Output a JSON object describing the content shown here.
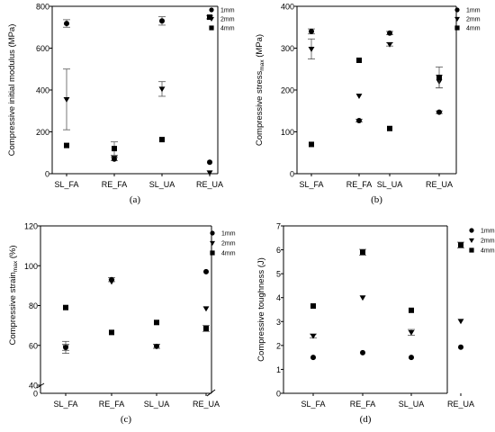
{
  "chart_data": [
    {
      "id": "a",
      "type": "scatter",
      "panel_label": "(a)",
      "ylabel": "Compressive initial modulus (MPa)",
      "ylim": [
        0,
        800
      ],
      "yticks": [
        "0",
        "200",
        "400",
        "600",
        "800"
      ],
      "categories": [
        "SL_FA",
        "RE_FA",
        "SL_UA",
        "RE_UA"
      ],
      "series": [
        {
          "name": "1mm",
          "marker": "circle",
          "values": [
            718,
            70,
            730,
            55
          ],
          "errors": [
            18,
            8,
            20,
            0
          ]
        },
        {
          "name": "2mm",
          "marker": "triangle",
          "values": [
            355,
            75,
            405,
            5
          ],
          "errors": [
            145,
            0,
            35,
            0
          ]
        },
        {
          "name": "4mm",
          "marker": "square",
          "values": [
            135,
            120,
            163,
            748
          ],
          "errors": [
            0,
            32,
            0,
            8
          ]
        }
      ]
    },
    {
      "id": "b",
      "type": "scatter",
      "panel_label": "(b)",
      "ylabel_main": "Compressive  stress",
      "ylabel_sub": "max",
      "ylabel_unit": " (MPa)",
      "ylim": [
        0,
        400
      ],
      "yticks": [
        "0",
        "100",
        "200",
        "300",
        "400"
      ],
      "categories": [
        "SL_FA",
        "RE_FA",
        "SL_UA",
        "RE_UA"
      ],
      "series": [
        {
          "name": "1mm",
          "marker": "circle",
          "values": [
            340,
            127,
            336,
            147
          ],
          "errors": [
            6,
            3,
            4,
            3
          ]
        },
        {
          "name": "2mm",
          "marker": "triangle",
          "values": [
            298,
            186,
            309,
            220
          ],
          "errors": [
            24,
            0,
            4,
            15
          ]
        },
        {
          "name": "4mm",
          "marker": "square",
          "values": [
            70,
            271,
            108,
            230
          ],
          "errors": [
            0,
            0,
            0,
            25
          ]
        }
      ]
    },
    {
      "id": "c",
      "type": "scatter",
      "panel_label": "(c)",
      "ylabel_main": "Compressive strain",
      "ylabel_sub": "max",
      "ylabel_unit": " (%)",
      "ylim": [
        40,
        120
      ],
      "yticks": [
        "40",
        "60",
        "80",
        "100",
        "120"
      ],
      "ybreak_tick": "0",
      "categories": [
        "SL_FA",
        "RE_FA",
        "SL_UA",
        "RE_UA"
      ],
      "series": [
        {
          "name": "1mm",
          "marker": "circle",
          "values": [
            59,
            93,
            59.5,
            97
          ],
          "errors": [
            1.5,
            1,
            1,
            0
          ]
        },
        {
          "name": "2mm",
          "marker": "triangle",
          "values": [
            59,
            92,
            59.5,
            78.5
          ],
          "errors": [
            3,
            0,
            1,
            0
          ]
        },
        {
          "name": "4mm",
          "marker": "square",
          "values": [
            79,
            66.5,
            71.5,
            68.5
          ],
          "errors": [
            0,
            0,
            0,
            1.5
          ]
        }
      ]
    },
    {
      "id": "d",
      "type": "scatter",
      "panel_label": "(d)",
      "ylabel": "Compressive toughness (J)",
      "ylim": [
        0,
        7
      ],
      "yticks": [
        "0",
        "1",
        "2",
        "3",
        "4",
        "5",
        "6",
        "7"
      ],
      "categories": [
        "SL_FA",
        "RE_FA",
        "SL_UA",
        "RE_UA"
      ],
      "series": [
        {
          "name": "1mm",
          "marker": "circle",
          "values": [
            1.5,
            1.7,
            1.5,
            1.93
          ],
          "errors": [
            0,
            0,
            0,
            0
          ]
        },
        {
          "name": "2mm",
          "marker": "triangle",
          "values": [
            2.4,
            4.0,
            2.55,
            3.02
          ],
          "errors": [
            0.08,
            0,
            0.12,
            0
          ]
        },
        {
          "name": "4mm",
          "marker": "square",
          "values": [
            3.65,
            5.9,
            3.47,
            6.2
          ],
          "errors": [
            0,
            0.12,
            0,
            0.12
          ]
        }
      ]
    }
  ]
}
